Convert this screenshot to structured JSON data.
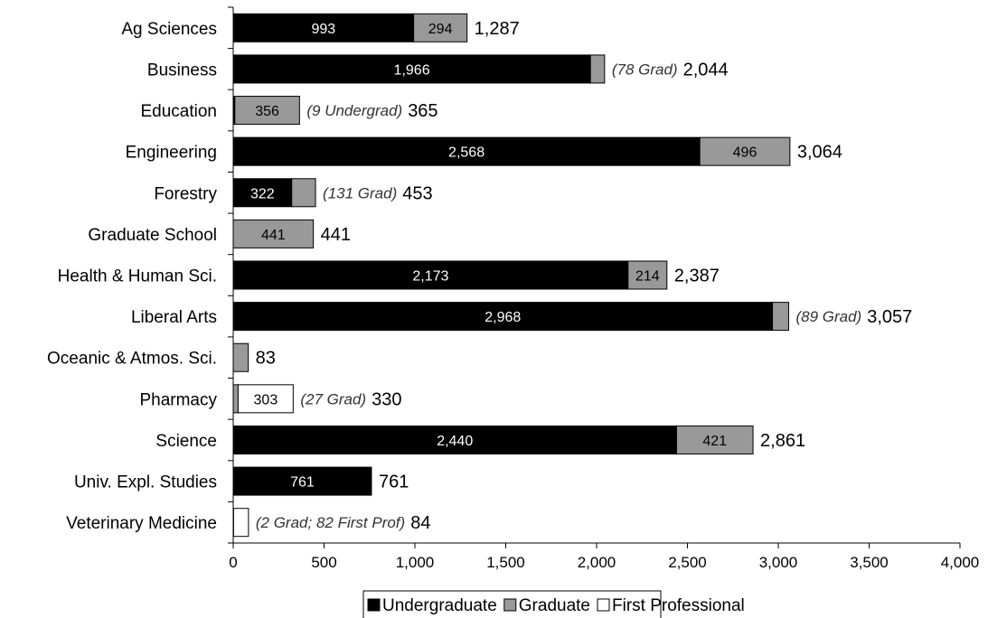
{
  "colors": {
    "undergraduate": "#000000",
    "graduate": "#999999",
    "first_professional": "#ffffff"
  },
  "chart_data": {
    "type": "bar",
    "orientation": "horizontal",
    "stacked": true,
    "categories": [
      "Ag Sciences",
      "Business",
      "Education",
      "Engineering",
      "Forestry",
      "Graduate School",
      "Health & Human Sci.",
      "Liberal Arts",
      "Oceanic & Atmos. Sci.",
      "Pharmacy",
      "Science",
      "Univ. Expl. Studies",
      "Veterinary Medicine"
    ],
    "series": [
      {
        "name": "Undergraduate",
        "values": [
          993,
          1966,
          9,
          2568,
          322,
          0,
          2173,
          2968,
          0,
          0,
          2440,
          761,
          0
        ]
      },
      {
        "name": "Graduate",
        "values": [
          294,
          78,
          356,
          496,
          131,
          441,
          214,
          89,
          83,
          27,
          421,
          0,
          2
        ]
      },
      {
        "name": "First Professional",
        "values": [
          0,
          0,
          0,
          0,
          0,
          0,
          0,
          0,
          0,
          303,
          0,
          0,
          82
        ]
      }
    ],
    "segment_labels": [
      [
        "993",
        "294"
      ],
      [
        "1,966"
      ],
      [
        "356"
      ],
      [
        "2,568",
        "496"
      ],
      [
        "322"
      ],
      [
        "441"
      ],
      [
        "2,173",
        "214"
      ],
      [
        "2,968"
      ],
      [],
      [
        "303"
      ],
      [
        "2,440",
        "421"
      ],
      [
        "761"
      ],
      []
    ],
    "annotations": [
      "",
      "(78 Grad)",
      "(9 Undergrad)",
      "",
      "(131 Grad)",
      "",
      "",
      "(89 Grad)",
      "",
      "(27 Grad)",
      "",
      "",
      "(2 Grad; 82 First Prof)"
    ],
    "totals": [
      "1,287",
      "2,044",
      "365",
      "3,064",
      "453",
      "441",
      "2,387",
      "3,057",
      "83",
      "330",
      "2,861",
      "761",
      "84"
    ],
    "x_ticks": [
      "0",
      "500",
      "1,000",
      "1,500",
      "2,000",
      "2,500",
      "3,000",
      "3,500",
      "4,000"
    ],
    "xlim": [
      0,
      4000
    ],
    "grid": false,
    "legend_position": "bottom",
    "title": "",
    "xlabel": "",
    "ylabel": ""
  }
}
